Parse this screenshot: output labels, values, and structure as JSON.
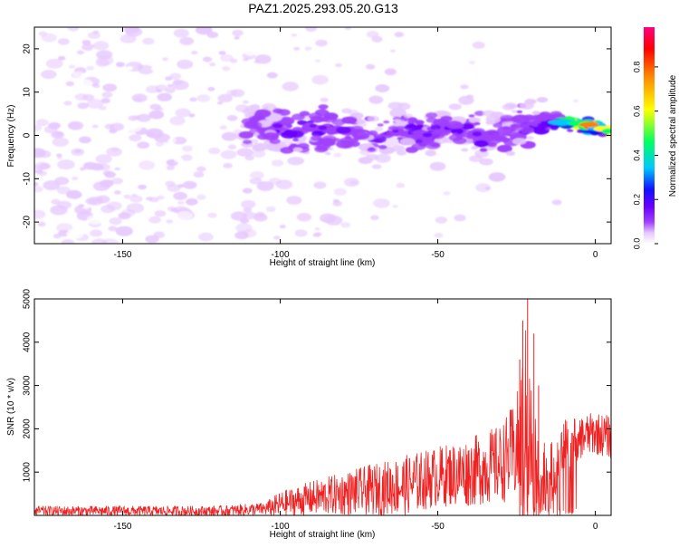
{
  "figure_title": "PAZ1.2025.293.05.20.G13",
  "chart_data": [
    {
      "type": "heatmap",
      "title": "PAZ1.2025.293.05.20.G13",
      "xlabel": "Height of straight line (km)",
      "ylabel": "Frequency (Hz)",
      "xlim": [
        -178,
        5
      ],
      "ylim": [
        -25,
        25
      ],
      "xticks": [
        -150,
        -100,
        -50,
        0
      ],
      "yticks": [
        -20,
        -10,
        0,
        10,
        20
      ],
      "colorbar": {
        "label": "Normalized spectral amplitude",
        "range": [
          0.0,
          0.98
        ],
        "ticks": [
          "0.0",
          "0.2",
          "0.4",
          "0.6",
          "0.8"
        ],
        "colors": [
          "#ffffff",
          "#e6c8ff",
          "#a040ff",
          "#6a00ff",
          "#1010ff",
          "#00c8ff",
          "#00ff60",
          "#ffff00",
          "#ff8000",
          "#ff0050"
        ]
      },
      "ridge": [
        {
          "x": -110,
          "y": 3,
          "amp": 0.2
        },
        {
          "x": -100,
          "y": 1,
          "amp": 0.3
        },
        {
          "x": -95,
          "y": 0,
          "amp": 0.3
        },
        {
          "x": -90,
          "y": 2,
          "amp": 0.3
        },
        {
          "x": -80,
          "y": 1,
          "amp": 0.3
        },
        {
          "x": -70,
          "y": -1,
          "amp": 0.25
        },
        {
          "x": -60,
          "y": 2,
          "amp": 0.25
        },
        {
          "x": -55,
          "y": 0,
          "amp": 0.3
        },
        {
          "x": -45,
          "y": 2,
          "amp": 0.25
        },
        {
          "x": -35,
          "y": 0,
          "amp": 0.3
        },
        {
          "x": -25,
          "y": 2,
          "amp": 0.25
        },
        {
          "x": -15,
          "y": 3,
          "amp": 0.35
        },
        {
          "x": -8,
          "y": 3,
          "amp": 0.75
        },
        {
          "x": 0,
          "y": 2,
          "amp": 0.95
        },
        {
          "x": 4,
          "y": 1,
          "amp": 0.8
        }
      ]
    },
    {
      "type": "line",
      "xlabel": "Height of straight line (km)",
      "ylabel": "SNR (10 * v/v)",
      "xlim": [
        -178,
        5
      ],
      "ylim": [
        0,
        5000
      ],
      "xticks": [
        -150,
        -100,
        -50,
        0
      ],
      "yticks": [
        1000,
        2000,
        3000,
        4000,
        5000
      ],
      "series_color": "#ee2222",
      "envelope": {
        "x": [
          -178,
          -150,
          -120,
          -105,
          -100,
          -90,
          -80,
          -70,
          -60,
          -50,
          -40,
          -30,
          -25,
          -22,
          -20,
          -18,
          -15,
          -12,
          -10,
          -5,
          0,
          5
        ],
        "base": [
          100,
          100,
          100,
          150,
          250,
          400,
          500,
          600,
          700,
          900,
          1000,
          1200,
          1500,
          2000,
          1500,
          1000,
          900,
          1100,
          1600,
          1800,
          1900,
          1800
        ],
        "spread": [
          120,
          120,
          120,
          150,
          300,
          400,
          500,
          600,
          700,
          700,
          800,
          900,
          1200,
          2500,
          1500,
          1000,
          800,
          600,
          600,
          500,
          500,
          500
        ]
      }
    }
  ]
}
